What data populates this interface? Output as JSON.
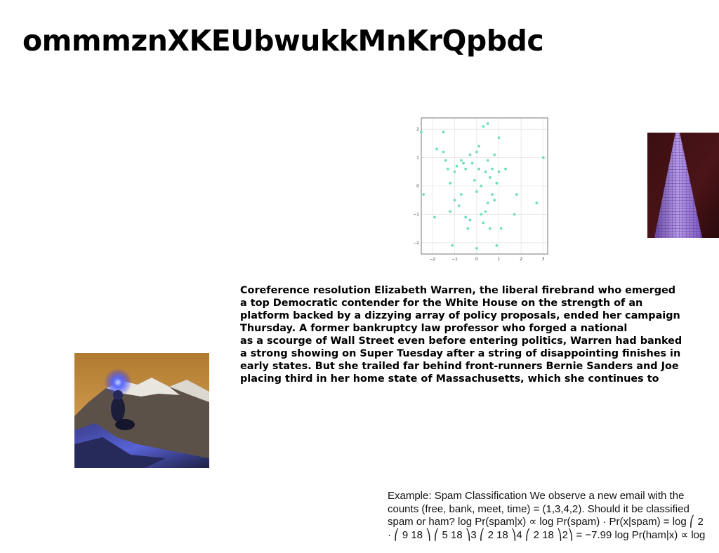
{
  "title": "ommmznXKEUbwukkMnKrQpbdc",
  "article": {
    "lines": [
      "Coreference resolution Elizabeth Warren, the liberal firebrand who emerged",
      "a top Democratic contender for the White House on the strength of an",
      "platform backed by a dizzying array of policy proposals, ended her campaign",
      "Thursday. A former bankruptcy law professor who forged a national",
      "as a scourge of Wall Street even before entering politics, Warren had banked",
      "a strong showing on Super Tuesday after a string of disappointing finishes in",
      "early states. But she trailed far behind front-runners Bernie Sanders and Joe",
      "placing third in her home state of Massachusetts, which she continues to"
    ]
  },
  "example": {
    "lines": [
      "Example: Spam Classification We observe a new email with the",
      "counts (free, bank, meet, time) = (1,3,4,2). Should it be classified",
      "spam or ham? log Pr(spam|x) ∝ log Pr(spam) · Pr(x|spam) = log ⎛ 2",
      "· ⎛ 9 18 ⎞ ⎛ 5 18 ⎞3 ⎛ 2 18 ⎞4 ⎛ 2 18 ⎞2⎞ = −7.99 log Pr(ham|x) ∝ log"
    ]
  },
  "images": {
    "scatter_plot": "scatter-plot-image",
    "tower": "tower-photo",
    "hiker": "mountain-hiker-photo"
  },
  "chart_data": {
    "type": "scatter",
    "xlim": [
      -2.5,
      3.2
    ],
    "ylim": [
      -2.4,
      2.4
    ],
    "xticks": [
      "−2",
      "−1",
      "0",
      "1",
      "2",
      "3"
    ],
    "yticks": [
      "2",
      "1",
      "0",
      "−1",
      "−2"
    ],
    "grid": true,
    "color": "#6fe0b4",
    "points": [
      [
        -2.5,
        1.9
      ],
      [
        -2.4,
        -0.3
      ],
      [
        -1.9,
        -1.1
      ],
      [
        -1.8,
        1.3
      ],
      [
        -1.5,
        1.9
      ],
      [
        -1.5,
        1.2
      ],
      [
        -1.4,
        0.9
      ],
      [
        -1.3,
        0.6
      ],
      [
        -1.2,
        0.1
      ],
      [
        -1.2,
        -0.9
      ],
      [
        -1.1,
        -2.1
      ],
      [
        -1.0,
        0.5
      ],
      [
        -1.0,
        -0.5
      ],
      [
        -0.9,
        0.7
      ],
      [
        -0.8,
        -0.7
      ],
      [
        -0.7,
        0.9
      ],
      [
        -0.7,
        -0.3
      ],
      [
        -0.6,
        0.8
      ],
      [
        -0.5,
        -1.1
      ],
      [
        -0.5,
        0.6
      ],
      [
        -0.4,
        -1.5
      ],
      [
        -0.3,
        1.1
      ],
      [
        -0.3,
        -1.2
      ],
      [
        -0.2,
        0.8
      ],
      [
        -0.1,
        0.2
      ],
      [
        0.0,
        1.2
      ],
      [
        0.0,
        -0.2
      ],
      [
        0.0,
        -2.2
      ],
      [
        0.1,
        1.4
      ],
      [
        0.1,
        0.6
      ],
      [
        0.2,
        -1.0
      ],
      [
        0.2,
        0.0
      ],
      [
        0.3,
        2.1
      ],
      [
        0.3,
        -1.3
      ],
      [
        0.4,
        -0.9
      ],
      [
        0.4,
        0.5
      ],
      [
        0.5,
        2.2
      ],
      [
        0.5,
        0.9
      ],
      [
        0.5,
        -0.6
      ],
      [
        0.6,
        0.3
      ],
      [
        0.6,
        -1.5
      ],
      [
        0.7,
        -0.3
      ],
      [
        0.7,
        0.6
      ],
      [
        0.8,
        1.1
      ],
      [
        0.8,
        -0.5
      ],
      [
        0.9,
        0.1
      ],
      [
        0.9,
        -2.1
      ],
      [
        1.0,
        1.7
      ],
      [
        1.0,
        0.5
      ],
      [
        1.1,
        -1.5
      ],
      [
        1.3,
        0.6
      ],
      [
        1.7,
        -1.0
      ],
      [
        1.8,
        -0.3
      ],
      [
        2.7,
        -0.6
      ],
      [
        3.0,
        1.0
      ]
    ]
  }
}
